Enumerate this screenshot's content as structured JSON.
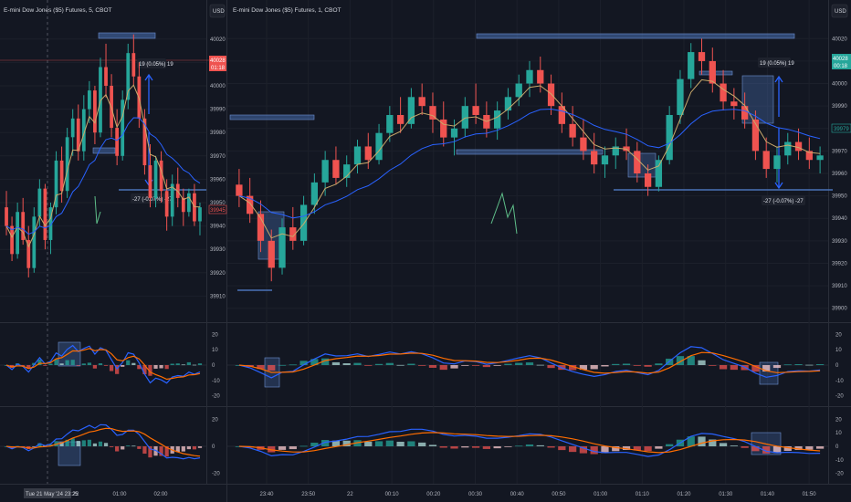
{
  "colors": {
    "bg": "#131722",
    "panel_border": "#2a2e39",
    "up": "#26a69a",
    "down": "#ef5350",
    "ema_fast": "#c9a96b",
    "ema_slow": "#2962ff",
    "macd": "#2962ff",
    "signal": "#ff6d00",
    "zone": "#4a72b8",
    "measure": "#2962ff",
    "wave": "#5fbf8a",
    "crosshair_price": "#ef5350"
  },
  "left": {
    "title": "E-mini Dow Jones ($5) Futures, 5, CBOT",
    "currency": "USD",
    "price_ticks": [
      "40020",
      "40010",
      "40000",
      "39990",
      "39980",
      "39970",
      "39960",
      "39950",
      "39940",
      "39930",
      "39920",
      "39910"
    ],
    "price_tag_current": "40028",
    "price_tag_current_sub": "01:18",
    "price_tag_low": "39945",
    "measure_up_label": "19 (0.05%) 19",
    "measure_down_label": "-27 (-0.07%) -27",
    "ind1_ticks": [
      "20",
      "10",
      "0",
      "-10",
      "-20"
    ],
    "ind2_ticks": [
      "20",
      "0",
      "-20"
    ],
    "time_labels": [
      "01:00",
      "02:00"
    ],
    "date_tag": "Tue 21 May '24  23:25",
    "time_22": "22"
  },
  "right": {
    "title": "E-mini Dow Jones ($5) Futures, 1, CBOT",
    "currency": "USD",
    "price_ticks": [
      "40020",
      "40010",
      "40000",
      "39990",
      "39980",
      "39970",
      "39960",
      "39950",
      "39940",
      "39930",
      "39920",
      "39910",
      "39900"
    ],
    "price_tag_current": "40028",
    "price_tag_current_sub": "00:18",
    "price_tag_low": "39979",
    "measure_up_label": "19 (0.05%) 19",
    "measure_down_label": "-27 (-0.07%) -27",
    "ind1_ticks": [
      "20",
      "10",
      "0",
      "-10",
      "-20"
    ],
    "ind2_ticks": [
      "20",
      "10",
      "0",
      "-10",
      "-20"
    ],
    "time_labels": [
      "23:40",
      "23:50",
      "22",
      "00:10",
      "00:20",
      "00:30",
      "00:40",
      "00:50",
      "01:00",
      "01:10",
      "01:20",
      "01:30",
      "01:40",
      "01:50"
    ]
  },
  "chart_data": [
    {
      "type": "candlestick",
      "title": "E-mini Dow Jones ($5) Futures, 5, CBOT",
      "ylim": [
        39900,
        40025
      ],
      "ohlc": [
        [
          39948,
          39955,
          39936,
          39940
        ],
        [
          39940,
          39944,
          39925,
          39928
        ],
        [
          39928,
          39950,
          39926,
          39946
        ],
        [
          39946,
          39952,
          39932,
          39934
        ],
        [
          39934,
          39940,
          39918,
          39922
        ],
        [
          39922,
          39948,
          39920,
          39944
        ],
        [
          39944,
          39960,
          39940,
          39956
        ],
        [
          39956,
          39958,
          39930,
          39934
        ],
        [
          39934,
          39950,
          39928,
          39948
        ],
        [
          39948,
          39972,
          39945,
          39968
        ],
        [
          39968,
          39974,
          39950,
          39955
        ],
        [
          39955,
          39982,
          39952,
          39978
        ],
        [
          39978,
          39990,
          39970,
          39986
        ],
        [
          39986,
          39992,
          39968,
          39972
        ],
        [
          39972,
          39996,
          39968,
          39990
        ],
        [
          39990,
          40002,
          39984,
          39998
        ],
        [
          39998,
          40000,
          39975,
          39980
        ],
        [
          39980,
          40012,
          39978,
          40008
        ],
        [
          40008,
          40018,
          39995,
          40000
        ],
        [
          40000,
          40005,
          39978,
          39982
        ],
        [
          39982,
          39990,
          39966,
          39970
        ],
        [
          39970,
          39998,
          39968,
          39994
        ],
        [
          39994,
          40018,
          39990,
          40014
        ],
        [
          40014,
          40022,
          40000,
          40004
        ],
        [
          40004,
          40010,
          39982,
          39986
        ],
        [
          39986,
          39990,
          39962,
          39966
        ],
        [
          39966,
          39975,
          39948,
          39952
        ],
        [
          39952,
          39970,
          39948,
          39968
        ],
        [
          39968,
          39972,
          39950,
          39955
        ],
        [
          39955,
          39960,
          39938,
          39944
        ],
        [
          39944,
          39962,
          39940,
          39958
        ],
        [
          39958,
          39965,
          39948,
          39952
        ],
        [
          39952,
          39956,
          39940,
          39946
        ],
        [
          39946,
          39956,
          39944,
          39954
        ],
        [
          39954,
          39958,
          39940,
          39942
        ],
        [
          39942,
          39950,
          39936,
          39948
        ]
      ]
    },
    {
      "type": "candlestick",
      "title": "E-mini Dow Jones ($5) Futures, 1, CBOT",
      "ylim": [
        39895,
        40025
      ],
      "ohlc": [
        [
          39955,
          39962,
          39945,
          39950
        ],
        [
          39950,
          39958,
          39938,
          39942
        ],
        [
          39942,
          39948,
          39925,
          39930
        ],
        [
          39930,
          39935,
          39912,
          39918
        ],
        [
          39918,
          39940,
          39915,
          39936
        ],
        [
          39936,
          39945,
          39926,
          39930
        ],
        [
          39930,
          39950,
          39928,
          39946
        ],
        [
          39946,
          39960,
          39942,
          39956
        ],
        [
          39956,
          39970,
          39950,
          39966
        ],
        [
          39966,
          39972,
          39955,
          39958
        ],
        [
          39958,
          39968,
          39954,
          39964
        ],
        [
          39964,
          39975,
          39960,
          39972
        ],
        [
          39972,
          39978,
          39962,
          39966
        ],
        [
          39966,
          39982,
          39964,
          39978
        ],
        [
          39978,
          39990,
          39974,
          39986
        ],
        [
          39986,
          39994,
          39978,
          39982
        ],
        [
          39982,
          39998,
          39980,
          39994
        ],
        [
          39994,
          40000,
          39986,
          39990
        ],
        [
          39990,
          39996,
          39978,
          39984
        ],
        [
          39984,
          39992,
          39972,
          39976
        ],
        [
          39976,
          39984,
          39968,
          39980
        ],
        [
          39980,
          39994,
          39976,
          39990
        ],
        [
          39990,
          40000,
          39982,
          39986
        ],
        [
          39986,
          39992,
          39976,
          39980
        ],
        [
          39980,
          39992,
          39975,
          39988
        ],
        [
          39988,
          39998,
          39984,
          39994
        ],
        [
          39994,
          40004,
          39990,
          40000
        ],
        [
          40000,
          40010,
          39994,
          40006
        ],
        [
          40006,
          40012,
          39996,
          40000
        ],
        [
          40000,
          40004,
          39986,
          39990
        ],
        [
          39990,
          39996,
          39978,
          39982
        ],
        [
          39982,
          39990,
          39972,
          39976
        ],
        [
          39976,
          39984,
          39966,
          39970
        ],
        [
          39970,
          39978,
          39960,
          39964
        ],
        [
          39964,
          39972,
          39958,
          39968
        ],
        [
          39968,
          39976,
          39962,
          39972
        ],
        [
          39972,
          39980,
          39966,
          39970
        ],
        [
          39970,
          39974,
          39956,
          39960
        ],
        [
          39960,
          39964,
          39950,
          39954
        ],
        [
          39954,
          39968,
          39952,
          39966
        ],
        [
          39966,
          39990,
          39964,
          39986
        ],
        [
          39986,
          40006,
          39982,
          40002
        ],
        [
          40002,
          40018,
          39998,
          40014
        ],
        [
          40014,
          40020,
          40004,
          40010
        ],
        [
          40010,
          40016,
          39996,
          40000
        ],
        [
          40000,
          40006,
          39988,
          39992
        ],
        [
          39992,
          39998,
          39984,
          39990
        ],
        [
          39990,
          39996,
          39980,
          39984
        ],
        [
          39984,
          39988,
          39966,
          39970
        ],
        [
          39970,
          39976,
          39958,
          39962
        ],
        [
          39962,
          39972,
          39956,
          39968
        ],
        [
          39968,
          39978,
          39964,
          39974
        ],
        [
          39974,
          39980,
          39966,
          39970
        ],
        [
          39970,
          39976,
          39962,
          39966
        ],
        [
          39966,
          39972,
          39960,
          39968
        ]
      ]
    }
  ]
}
